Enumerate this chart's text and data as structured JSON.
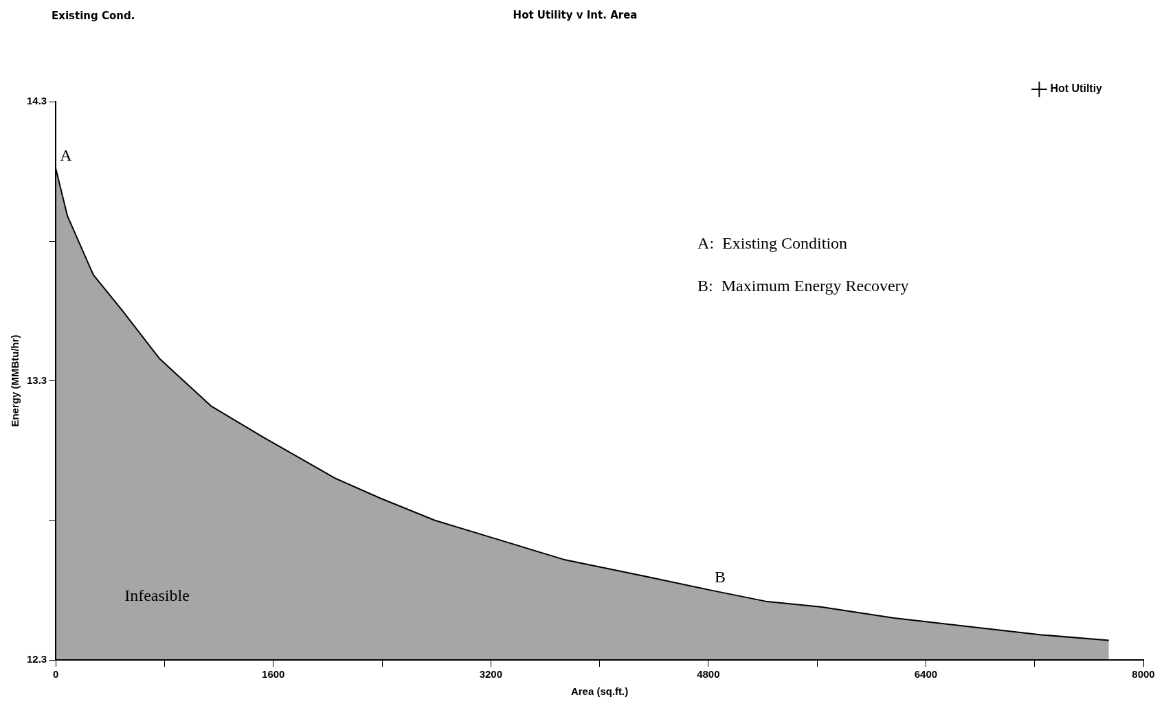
{
  "chart_data": {
    "type": "area",
    "title": "Hot Utility v Int. Area",
    "subtitle": "Existing Cond.",
    "xlabel": "Area (sq.ft.)",
    "ylabel": "Energy (MMBtu/hr)",
    "x": [
      0,
      86,
      276,
      492,
      762,
      1141,
      1519,
      2059,
      2384,
      2789,
      3195,
      3735,
      4330,
      4816,
      5222,
      5627,
      6168,
      6708,
      7249,
      7746
    ],
    "series": [
      {
        "name": "Hot Utiltiy",
        "color": "#000000",
        "values": [
          14.06,
          13.89,
          13.68,
          13.55,
          13.38,
          13.21,
          13.1,
          12.95,
          12.88,
          12.8,
          12.74,
          12.66,
          12.6,
          12.55,
          12.51,
          12.49,
          12.45,
          12.42,
          12.39,
          12.37
        ]
      }
    ],
    "xlim": [
      0,
      8000
    ],
    "xticks": [
      0,
      {
        "value": 800,
        "label": null
      },
      1600,
      {
        "value": 2400,
        "label": null
      },
      3200,
      {
        "value": 4000,
        "label": null
      },
      4800,
      {
        "value": 5600,
        "label": null
      },
      6400,
      {
        "value": 7200,
        "label": null
      },
      8000
    ],
    "ylim": [
      12.3,
      14.3
    ],
    "yticks": [
      12.3,
      {
        "value": 12.8,
        "label": null
      },
      13.3,
      {
        "value": 13.8,
        "label": null
      },
      14.3
    ],
    "annotations": [
      {
        "text": "A",
        "x": 0,
        "y": 14.06
      },
      {
        "text": "B",
        "x": 4816,
        "y": 12.55
      },
      "A:  Existing Condition",
      "B:  Maximum Energy Recovery",
      "Infeasible"
    ],
    "grid": false,
    "legend": "top right",
    "marker": "none"
  }
}
